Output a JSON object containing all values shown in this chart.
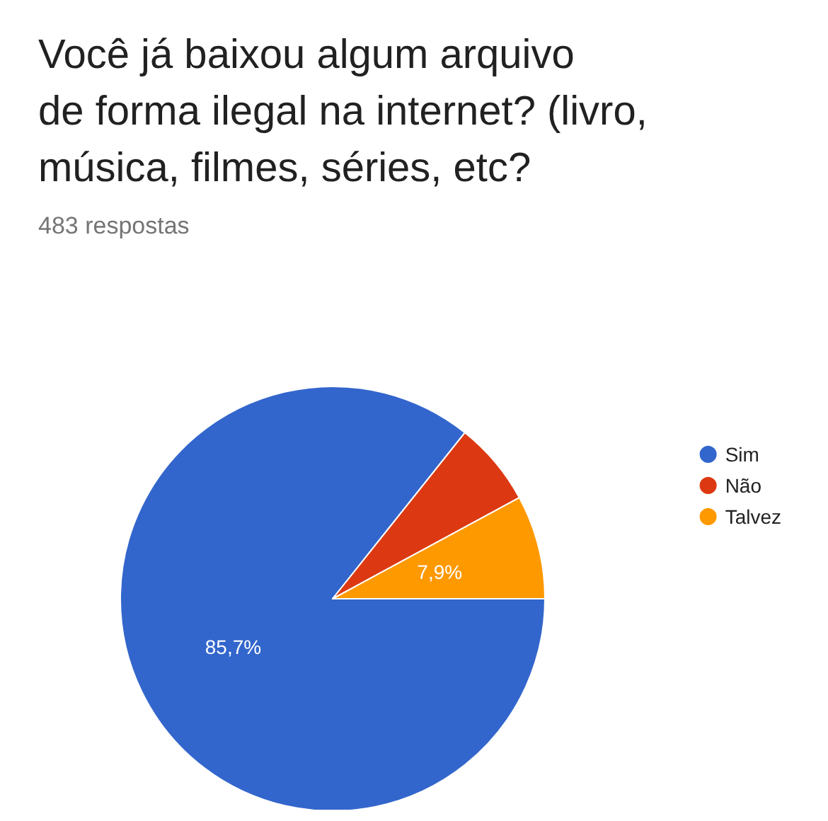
{
  "chart_data": {
    "type": "pie",
    "title": "Você já baixou algum arquivo de forma ilegal na internet? (livro, música, filmes, séries, etc?",
    "subtitle": "483 respostas",
    "categories": [
      "Sim",
      "Não",
      "Talvez"
    ],
    "values": [
      85.7,
      6.4,
      7.9
    ],
    "colors": [
      "#3366cc",
      "#dc3912",
      "#ff9900"
    ],
    "value_labels": [
      "85,7%",
      null,
      "7,9%"
    ],
    "legend": "right"
  }
}
